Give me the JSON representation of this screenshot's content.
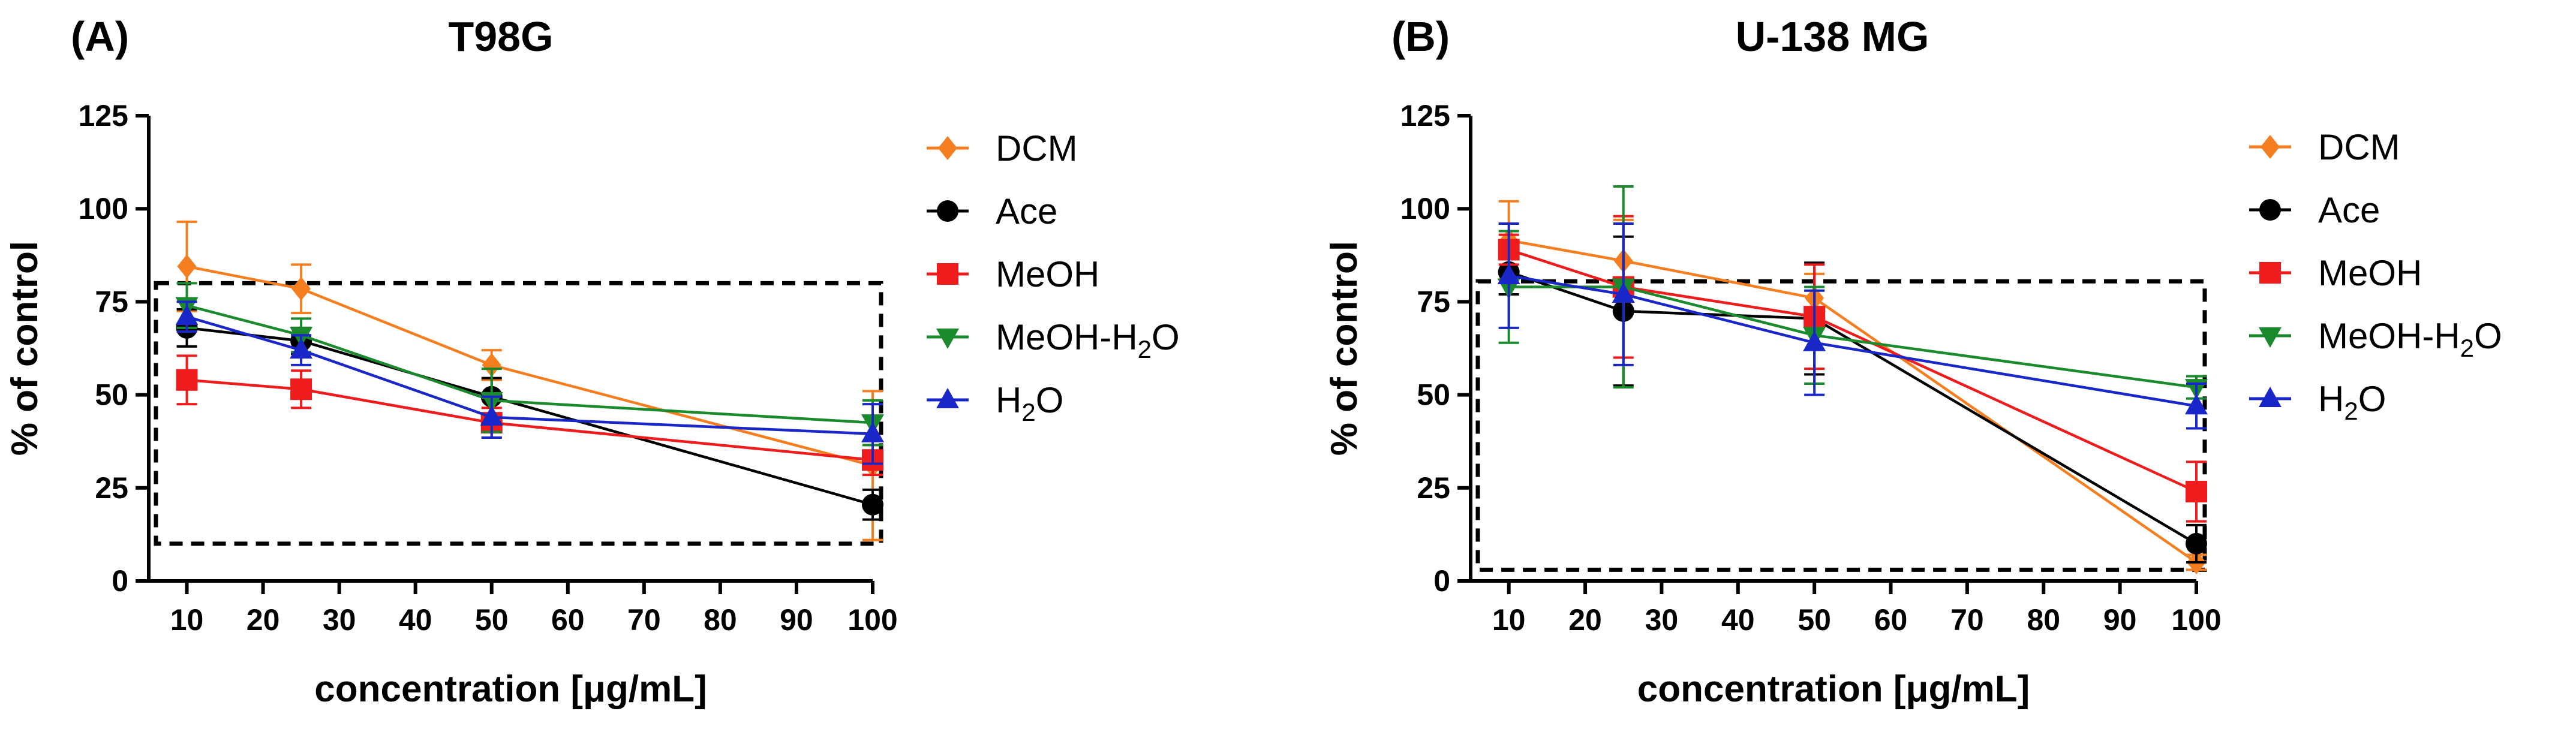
{
  "chart_data": [
    {
      "type": "line",
      "panel": "(A)",
      "title": "T98G",
      "xlabel": "concentration [μg/mL]",
      "ylabel": "% of control",
      "xlim": [
        5,
        100
      ],
      "ylim": [
        0,
        125
      ],
      "xticks": [
        "10",
        "20",
        "30",
        "40",
        "50",
        "60",
        "70",
        "80",
        "90",
        "100"
      ],
      "yticks": [
        "0",
        "25",
        "50",
        "75",
        "100",
        "125"
      ],
      "highlight_box": {
        "y_range": [
          10,
          80
        ]
      },
      "x": [
        10,
        25,
        50,
        100
      ],
      "series": [
        {
          "name": "DCM",
          "sub": "",
          "color": "#f57f20",
          "marker": "diamond",
          "values": [
            84.5,
            78.5,
            58,
            31
          ],
          "errors": [
            12,
            6.5,
            4,
            20
          ]
        },
        {
          "name": "Ace",
          "sub": "",
          "color": "#000000",
          "marker": "circle",
          "values": [
            68,
            64.5,
            49.5,
            20.5
          ],
          "errors": [
            5,
            3.5,
            5,
            4
          ]
        },
        {
          "name": "MeOH",
          "sub": "",
          "color": "#ee1c1c",
          "marker": "square",
          "values": [
            54,
            51.5,
            42.5,
            32.5
          ],
          "errors": [
            6.5,
            5,
            4,
            4
          ]
        },
        {
          "name": "MeOH-H",
          "sub": "2",
          "suffix": "O",
          "color": "#1a8a2c",
          "marker": "triangle-down",
          "values": [
            74,
            66,
            48.5,
            42.5
          ],
          "errors": [
            6,
            4.5,
            8.5,
            6
          ]
        },
        {
          "name": "H",
          "sub": "2",
          "suffix": "O",
          "color": "#1a27c8",
          "marker": "triangle-up",
          "values": [
            71,
            62,
            44,
            39.5
          ],
          "errors": [
            4,
            4,
            5.5,
            8
          ]
        }
      ]
    },
    {
      "type": "line",
      "panel": "(B)",
      "title": "U-138 MG",
      "xlabel": "concentration [μg/mL]",
      "ylabel": "% of control",
      "xlim": [
        5,
        100
      ],
      "ylim": [
        0,
        125
      ],
      "xticks": [
        "10",
        "20",
        "30",
        "40",
        "50",
        "60",
        "70",
        "80",
        "90",
        "100"
      ],
      "yticks": [
        "0",
        "25",
        "50",
        "75",
        "100",
        "125"
      ],
      "highlight_box": {
        "y_range": [
          3,
          80.5
        ]
      },
      "x": [
        10,
        25,
        50,
        100
      ],
      "series": [
        {
          "name": "DCM",
          "sub": "",
          "color": "#f57f20",
          "marker": "diamond",
          "values": [
            91.5,
            86,
            76,
            5
          ],
          "errors": [
            10.5,
            11,
            6.5,
            2
          ]
        },
        {
          "name": "Ace",
          "sub": "",
          "color": "#000000",
          "marker": "circle",
          "values": [
            83,
            72.5,
            70.5,
            10
          ],
          "errors": [
            6,
            20,
            15,
            5
          ]
        },
        {
          "name": "MeOH",
          "sub": "",
          "color": "#ee1c1c",
          "marker": "square",
          "values": [
            89,
            79,
            71,
            24
          ],
          "errors": [
            4,
            19,
            14,
            8
          ]
        },
        {
          "name": "MeOH-H",
          "sub": "2",
          "suffix": "O",
          "color": "#1a8a2c",
          "marker": "triangle-down",
          "values": [
            79,
            79,
            66,
            52
          ],
          "errors": [
            15,
            27,
            13,
            3
          ]
        },
        {
          "name": "H",
          "sub": "2",
          "suffix": "O",
          "color": "#1a27c8",
          "marker": "triangle-up",
          "values": [
            82,
            77,
            64,
            47
          ],
          "errors": [
            14,
            19,
            14,
            6
          ]
        }
      ]
    }
  ]
}
